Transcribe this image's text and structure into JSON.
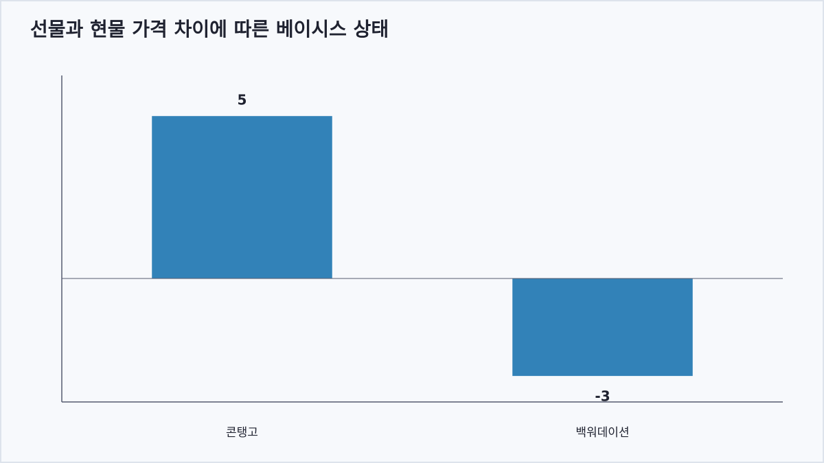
{
  "chart_data": {
    "type": "bar",
    "title": "선물과 현물 가격 차이에 따른 베이시스 상태",
    "categories": [
      "콘탱고",
      "백워데이션"
    ],
    "values": [
      5,
      -3
    ],
    "color": "#3282b8",
    "ylim": [
      -3.8,
      6.25
    ]
  }
}
